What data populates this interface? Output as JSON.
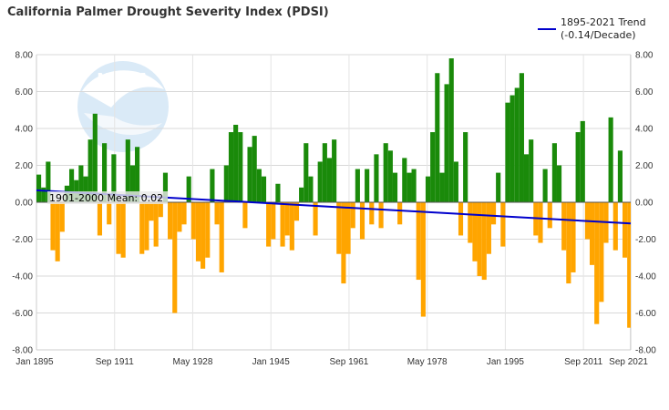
{
  "chart_data": {
    "type": "bar",
    "title": "California Palmer Drought Severity Index (PDSI)",
    "xlabel": "",
    "ylabel": "",
    "x_range": [
      "Jan 1895",
      "Sep 2021"
    ],
    "x_tick_labels": [
      "Jan 1895",
      "Sep 1911",
      "May 1928",
      "Jan 1945",
      "Sep 1961",
      "May 1978",
      "Jan 1995",
      "Sep 2011",
      "Sep 2021"
    ],
    "y_tick_labels_left": [
      "8.00",
      "6.00",
      "4.00",
      "2.00",
      "0.00",
      "-2.00",
      "-4.00",
      "-6.00",
      "-8.00"
    ],
    "y_tick_labels_right": [
      "8.00",
      "6.00",
      "4.00",
      "2.00",
      "0.00",
      "-2.00",
      "-4.00",
      "-6.00",
      "-8.00"
    ],
    "ylim": [
      -8,
      8
    ],
    "grid": true,
    "positive_color": "#1a8a0a",
    "negative_color": "#ffa500",
    "series": [
      {
        "kind": "monthly-bars",
        "resolution": "approximate (quarterly values read from chart)",
        "x": [
          1895.0,
          1896.0,
          1897.0,
          1898.0,
          1899.0,
          1900.0,
          1901.0,
          1902.0,
          1903.0,
          1904.0,
          1905.0,
          1906.0,
          1907.0,
          1908.0,
          1909.0,
          1910.0,
          1911.0,
          1912.0,
          1913.0,
          1914.0,
          1915.0,
          1916.0,
          1917.0,
          1918.0,
          1919.0,
          1920.0,
          1921.0,
          1922.0,
          1923.0,
          1924.0,
          1925.0,
          1926.0,
          1927.0,
          1928.0,
          1929.0,
          1930.0,
          1931.0,
          1932.0,
          1933.0,
          1934.0,
          1935.0,
          1936.0,
          1937.0,
          1938.0,
          1939.0,
          1940.0,
          1941.0,
          1942.0,
          1943.0,
          1944.0,
          1945.0,
          1946.0,
          1947.0,
          1948.0,
          1949.0,
          1950.0,
          1951.0,
          1952.0,
          1953.0,
          1954.0,
          1955.0,
          1956.0,
          1957.0,
          1958.0,
          1959.0,
          1960.0,
          1961.0,
          1962.0,
          1963.0,
          1964.0,
          1965.0,
          1966.0,
          1967.0,
          1968.0,
          1969.0,
          1970.0,
          1971.0,
          1972.0,
          1973.0,
          1974.0,
          1975.0,
          1976.0,
          1977.0,
          1978.0,
          1979.0,
          1980.0,
          1981.0,
          1982.0,
          1983.0,
          1984.0,
          1985.0,
          1986.0,
          1987.0,
          1988.0,
          1989.0,
          1990.0,
          1991.0,
          1992.0,
          1993.0,
          1994.0,
          1995.0,
          1996.0,
          1997.0,
          1998.0,
          1999.0,
          2000.0,
          2001.0,
          2002.0,
          2003.0,
          2004.0,
          2005.0,
          2006.0,
          2007.0,
          2008.0,
          2009.0,
          2010.0,
          2011.0,
          2012.0,
          2013.0,
          2014.0,
          2015.0,
          2016.0,
          2017.0,
          2018.0,
          2019.0,
          2020.0,
          2021.0
        ],
        "values": [
          1.5,
          0.8,
          2.2,
          -2.6,
          -3.2,
          -1.6,
          0.9,
          1.8,
          1.2,
          2.0,
          1.4,
          3.4,
          4.8,
          -1.8,
          3.2,
          -1.2,
          2.6,
          -2.8,
          -3.0,
          3.4,
          2.0,
          3.0,
          -2.8,
          -2.6,
          -1.0,
          -2.4,
          -0.8,
          1.6,
          -2.0,
          -6.0,
          -1.6,
          -1.2,
          1.4,
          -2.0,
          -3.2,
          -3.6,
          -3.0,
          1.8,
          -1.2,
          -3.8,
          2.0,
          3.8,
          4.2,
          3.8,
          -1.4,
          3.0,
          3.6,
          1.8,
          1.4,
          -2.4,
          -2.0,
          1.0,
          -2.4,
          -1.8,
          -2.6,
          -1.0,
          0.8,
          3.2,
          1.4,
          -1.8,
          2.2,
          3.2,
          2.4,
          3.4,
          -2.8,
          -4.4,
          -2.8,
          -1.4,
          1.8,
          -2.0,
          1.8,
          -1.2,
          2.6,
          -1.4,
          3.2,
          2.8,
          1.6,
          -1.2,
          2.4,
          1.6,
          1.8,
          -4.2,
          -6.2,
          1.4,
          3.8,
          7.0,
          1.6,
          6.4,
          7.8,
          2.2,
          -1.8,
          3.8,
          -2.2,
          -3.2,
          -4.0,
          -4.2,
          -2.8,
          -1.2,
          1.6,
          -2.4,
          5.4,
          5.8,
          6.2,
          7.0,
          2.6,
          3.4,
          -1.8,
          -2.2,
          1.8,
          -1.4,
          3.2,
          2.0,
          -2.6,
          -4.4,
          -3.8,
          3.8,
          4.4,
          -2.0,
          -3.4,
          -6.6,
          -5.4,
          -2.2,
          4.6,
          -2.6,
          2.8,
          -3.0,
          -6.8
        ]
      },
      {
        "name": "1895-2021 Trend\n(-0.14/Decade)",
        "kind": "trend-line",
        "color": "#0000cc",
        "x": [
          1895.0,
          2021.75
        ],
        "values": [
          0.65,
          -1.15
        ]
      }
    ],
    "legend": {
      "position": "top-right",
      "entries": [
        "1895-2021 Trend",
        "(-0.14/Decade)"
      ]
    },
    "annotations": [
      {
        "text": "1901-2000 Mean: 0.02",
        "position": "left, on the zero line"
      }
    ],
    "watermark": "NOAA"
  }
}
